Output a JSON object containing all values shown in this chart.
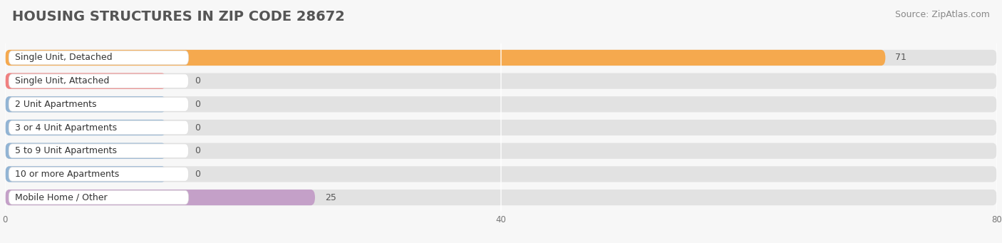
{
  "title": "HOUSING STRUCTURES IN ZIP CODE 28672",
  "source": "Source: ZipAtlas.com",
  "categories": [
    "Single Unit, Detached",
    "Single Unit, Attached",
    "2 Unit Apartments",
    "3 or 4 Unit Apartments",
    "5 to 9 Unit Apartments",
    "10 or more Apartments",
    "Mobile Home / Other"
  ],
  "values": [
    71,
    0,
    0,
    0,
    0,
    0,
    25
  ],
  "bar_colors": [
    "#F5A94E",
    "#F08080",
    "#92B4D4",
    "#92B4D4",
    "#92B4D4",
    "#92B4D4",
    "#C4A0C8"
  ],
  "zero_bar_width": 13,
  "xlim": [
    0,
    80
  ],
  "xticks": [
    0,
    40,
    80
  ],
  "background_color": "#f7f7f7",
  "bar_bg_color": "#e2e2e2",
  "label_bg_color": "#ffffff",
  "title_fontsize": 14,
  "source_fontsize": 9,
  "label_fontsize": 9,
  "value_fontsize": 9,
  "title_color": "#555555",
  "source_color": "#888888",
  "label_color": "#333333",
  "value_color": "#555555"
}
